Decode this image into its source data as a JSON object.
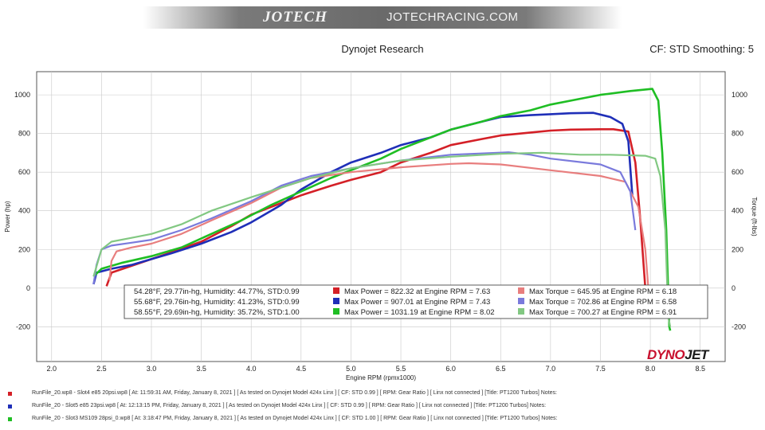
{
  "banner": {
    "logo": "JOTECH",
    "url": "JOTECHRACING.COM"
  },
  "header": {
    "title": "Dynojet Research",
    "cf": "CF: STD Smoothing: 5"
  },
  "chart_data": {
    "type": "line",
    "xlabel": "Engine RPM (rpmx1000)",
    "ylabel": "Power (hp)",
    "y2label": "Torque (ft-lbs)",
    "xlim": [
      1.85,
      8.75
    ],
    "ylim": [
      -380,
      1120
    ],
    "xticks": [
      "2.0",
      "2.5",
      "3.0",
      "3.5",
      "4.0",
      "4.5",
      "5.0",
      "5.5",
      "6.0",
      "6.5",
      "7.0",
      "7.5",
      "8.0",
      "8.5"
    ],
    "yticks": [
      "1000",
      "800",
      "600",
      "400",
      "200",
      "0",
      "-200"
    ],
    "grid": true,
    "series": [
      {
        "kind": "power",
        "color": "#d42027",
        "points": [
          [
            2.55,
            10
          ],
          [
            2.6,
            80
          ],
          [
            2.8,
            115
          ],
          [
            3.0,
            150
          ],
          [
            3.2,
            185
          ],
          [
            3.5,
            240
          ],
          [
            3.8,
            320
          ],
          [
            4.0,
            380
          ],
          [
            4.3,
            440
          ],
          [
            4.5,
            480
          ],
          [
            4.8,
            530
          ],
          [
            5.0,
            560
          ],
          [
            5.3,
            600
          ],
          [
            5.5,
            650
          ],
          [
            5.8,
            700
          ],
          [
            6.0,
            740
          ],
          [
            6.3,
            770
          ],
          [
            6.5,
            790
          ],
          [
            6.8,
            805
          ],
          [
            7.0,
            815
          ],
          [
            7.2,
            820
          ],
          [
            7.5,
            822
          ],
          [
            7.63,
            822
          ],
          [
            7.78,
            810
          ],
          [
            7.85,
            650
          ],
          [
            7.9,
            350
          ],
          [
            7.95,
            0
          ]
        ]
      },
      {
        "kind": "power",
        "color": "#1f2fb8",
        "points": [
          [
            2.42,
            20
          ],
          [
            2.45,
            80
          ],
          [
            2.6,
            100
          ],
          [
            2.8,
            120
          ],
          [
            3.0,
            150
          ],
          [
            3.2,
            180
          ],
          [
            3.5,
            230
          ],
          [
            3.8,
            290
          ],
          [
            4.0,
            340
          ],
          [
            4.3,
            430
          ],
          [
            4.5,
            510
          ],
          [
            4.8,
            600
          ],
          [
            5.0,
            650
          ],
          [
            5.3,
            700
          ],
          [
            5.5,
            740
          ],
          [
            5.8,
            780
          ],
          [
            6.0,
            820
          ],
          [
            6.3,
            860
          ],
          [
            6.5,
            885
          ],
          [
            6.8,
            895
          ],
          [
            7.0,
            900
          ],
          [
            7.2,
            905
          ],
          [
            7.43,
            907
          ],
          [
            7.6,
            885
          ],
          [
            7.72,
            850
          ],
          [
            7.78,
            760
          ],
          [
            7.82,
            480
          ]
        ]
      },
      {
        "kind": "power",
        "color": "#1fbe24",
        "points": [
          [
            2.42,
            60
          ],
          [
            2.5,
            100
          ],
          [
            2.7,
            130
          ],
          [
            3.0,
            165
          ],
          [
            3.3,
            210
          ],
          [
            3.6,
            280
          ],
          [
            3.9,
            350
          ],
          [
            4.2,
            430
          ],
          [
            4.5,
            500
          ],
          [
            4.8,
            570
          ],
          [
            5.0,
            610
          ],
          [
            5.3,
            670
          ],
          [
            5.5,
            720
          ],
          [
            5.8,
            780
          ],
          [
            6.0,
            820
          ],
          [
            6.3,
            860
          ],
          [
            6.5,
            890
          ],
          [
            6.8,
            920
          ],
          [
            7.0,
            950
          ],
          [
            7.3,
            980
          ],
          [
            7.5,
            1000
          ],
          [
            7.8,
            1020
          ],
          [
            8.02,
            1031
          ],
          [
            8.08,
            970
          ],
          [
            8.12,
            700
          ],
          [
            8.16,
            300
          ],
          [
            8.19,
            -200
          ],
          [
            8.2,
            -220
          ]
        ]
      },
      {
        "kind": "torque",
        "color": "#e87e7e",
        "points": [
          [
            2.58,
            40
          ],
          [
            2.6,
            140
          ],
          [
            2.65,
            190
          ],
          [
            2.8,
            210
          ],
          [
            3.0,
            230
          ],
          [
            3.3,
            280
          ],
          [
            3.6,
            350
          ],
          [
            4.0,
            440
          ],
          [
            4.3,
            520
          ],
          [
            4.6,
            570
          ],
          [
            5.0,
            600
          ],
          [
            5.5,
            625
          ],
          [
            6.0,
            643
          ],
          [
            6.18,
            646
          ],
          [
            6.5,
            640
          ],
          [
            7.0,
            610
          ],
          [
            7.5,
            580
          ],
          [
            7.75,
            550
          ],
          [
            7.88,
            420
          ],
          [
            7.95,
            200
          ],
          [
            7.98,
            0
          ]
        ]
      },
      {
        "kind": "torque",
        "color": "#7a7adc",
        "points": [
          [
            2.42,
            20
          ],
          [
            2.45,
            120
          ],
          [
            2.5,
            200
          ],
          [
            2.6,
            220
          ],
          [
            2.8,
            235
          ],
          [
            3.0,
            250
          ],
          [
            3.3,
            300
          ],
          [
            3.6,
            360
          ],
          [
            4.0,
            450
          ],
          [
            4.3,
            530
          ],
          [
            4.6,
            580
          ],
          [
            5.0,
            620
          ],
          [
            5.5,
            660
          ],
          [
            6.0,
            690
          ],
          [
            6.58,
            703
          ],
          [
            6.8,
            690
          ],
          [
            7.0,
            670
          ],
          [
            7.5,
            640
          ],
          [
            7.7,
            600
          ],
          [
            7.8,
            500
          ],
          [
            7.85,
            300
          ]
        ]
      },
      {
        "kind": "torque",
        "color": "#82c882",
        "points": [
          [
            2.42,
            60
          ],
          [
            2.5,
            200
          ],
          [
            2.6,
            240
          ],
          [
            2.8,
            260
          ],
          [
            3.0,
            280
          ],
          [
            3.3,
            330
          ],
          [
            3.6,
            400
          ],
          [
            4.0,
            470
          ],
          [
            4.3,
            520
          ],
          [
            4.6,
            570
          ],
          [
            5.0,
            620
          ],
          [
            5.5,
            660
          ],
          [
            6.0,
            680
          ],
          [
            6.5,
            695
          ],
          [
            6.91,
            700
          ],
          [
            7.3,
            690
          ],
          [
            7.6,
            690
          ],
          [
            7.95,
            685
          ],
          [
            8.05,
            670
          ],
          [
            8.1,
            580
          ],
          [
            8.15,
            300
          ],
          [
            8.18,
            -150
          ],
          [
            8.2,
            -200
          ]
        ]
      }
    ],
    "legend": {
      "weather": [
        "54.28°F, 29.77in-hg, Humidity: 44.77%, STD:0.99",
        "55.68°F, 29.76in-hg, Humidity: 41.23%, STD:0.99",
        "58.55°F, 29.69in-hg, Humidity: 35.72%, STD:1.00"
      ],
      "power": [
        {
          "color": "#d42027",
          "text": "Max Power = 822.32 at Engine RPM = 7.63"
        },
        {
          "color": "#1f2fb8",
          "text": "Max Power = 907.01 at Engine RPM = 7.43"
        },
        {
          "color": "#1fbe24",
          "text": "Max Power = 1031.19 at Engine RPM = 8.02"
        }
      ],
      "torque": [
        {
          "color": "#e87e7e",
          "text": "Max Torque = 645.95 at Engine RPM = 6.18"
        },
        {
          "color": "#7a7adc",
          "text": "Max Torque = 702.86 at Engine RPM = 6.58"
        },
        {
          "color": "#82c882",
          "text": "Max Torque = 700.27 at Engine RPM = 6.91"
        }
      ]
    }
  },
  "runs": [
    {
      "color": "#d42027",
      "text": "RunFile_20.wp8 - Slot4 e85 20psi.wp8 [ At: 11:59:31 AM, Friday, January 8, 2021 ] [ As tested on Dynojet Model 424x Linx ] [ CF: STD 0.99 ] [ RPM: Gear Ratio ] [ Linx not connected ] [Title: PT1200 Turbos] Notes:"
    },
    {
      "color": "#1f2fb8",
      "text": "RunFile_20 - Slot5 e85 23psi.wp8 [ At: 12:13:15 PM, Friday, January 8, 2021 ] [ As tested on Dynojet Model 424x Linx ] [ CF: STD 0.99 ] [ RPM: Gear Ratio ] [ Linx not connected ] [Title: PT1200 Turbos] Notes:"
    },
    {
      "color": "#1fbe24",
      "text": "RunFile_20 - Slot3 MS109 28psi_0.wp8 [ At: 3:18:47 PM, Friday, January 8, 2021 ] [ As tested on Dynojet Model 424x Linx ] [ CF: STD 1.00 ] [ RPM: Gear Ratio ] [ Linx not connected ] [Title: PT1200 Turbos] Notes:"
    }
  ],
  "dynojet_logo": "DYNOJET"
}
